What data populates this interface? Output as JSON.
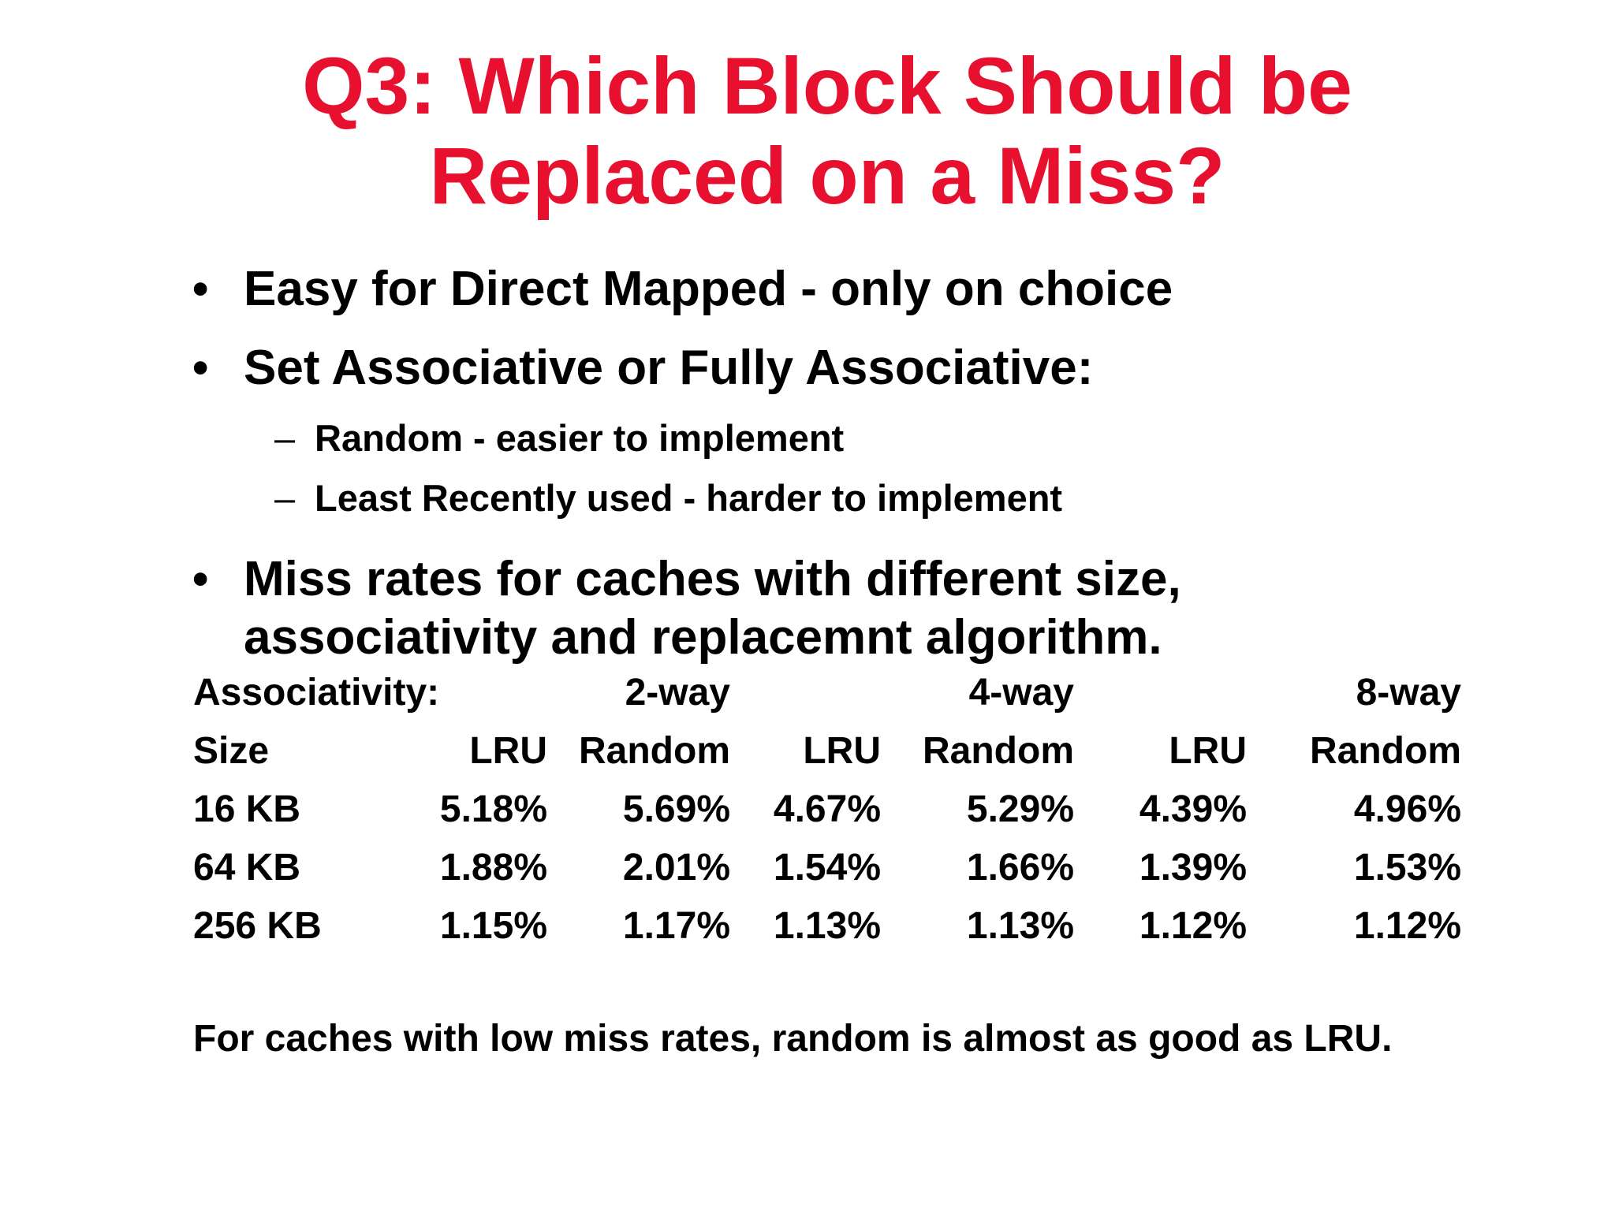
{
  "slide": {
    "title_line1": "Q3: Which Block Should be",
    "title_line2": "Replaced on a Miss?",
    "bullets": [
      "Easy for Direct Mapped - only on choice",
      "Set Associative or Fully Associative:",
      "Miss rates for caches with different size, associativity and replacemnt algorithm."
    ],
    "bullet3_line1": "Miss rates for caches with different size,",
    "bullet3_line2": "associativity and replacemnt algorithm.",
    "sub_bullets": [
      "Random - easier to implement",
      "Least Recently used - harder to implement"
    ],
    "bullet_symbol": "•",
    "dash_symbol": "–",
    "footer": "For caches with low miss rates, random is almost as good as LRU."
  },
  "table": {
    "assoc_label": "Associativity:",
    "assoc_groups": [
      "2-way",
      "4-way",
      "8-way"
    ],
    "size_label": "Size",
    "policies": [
      "LRU",
      "Random",
      "LRU",
      "Random",
      "LRU",
      "Random"
    ],
    "rows": [
      {
        "size": "16 KB",
        "values": [
          "5.18%",
          "5.69%",
          "4.67%",
          "5.29%",
          "4.39%",
          "4.96%"
        ]
      },
      {
        "size": "64 KB",
        "values": [
          "1.88%",
          "2.01%",
          "1.54%",
          "1.66%",
          "1.39%",
          "1.53%"
        ]
      },
      {
        "size": "256 KB",
        "values": [
          "1.15%",
          "1.17%",
          "1.13%",
          "1.13%",
          "1.12%",
          "1.12%"
        ]
      }
    ]
  },
  "colors": {
    "title": "#e8102f",
    "text": "#000000",
    "background": "#ffffff"
  }
}
